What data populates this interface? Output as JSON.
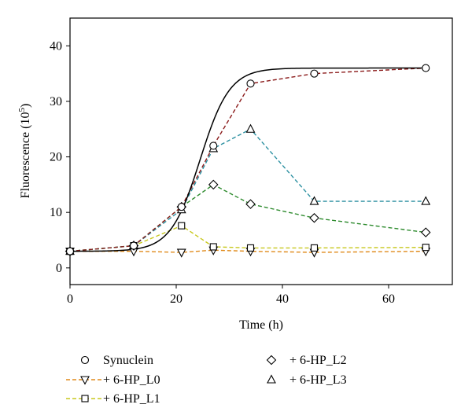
{
  "chart_data": {
    "type": "line",
    "title": "",
    "xlabel": "Time (h)",
    "ylabel_main": "Fluorescence (10",
    "ylabel_sup": "5",
    "ylabel_close": ")",
    "xlim": [
      0,
      72
    ],
    "ylim": [
      -3,
      45
    ],
    "x_ticks": [
      0,
      20,
      40,
      60
    ],
    "y_ticks": [
      0,
      10,
      20,
      30,
      40
    ],
    "grid": false,
    "legend_position": "below",
    "fit_curve": {
      "series": "Synuclein",
      "color": "#000000",
      "min": 3.0,
      "max": 36.0,
      "midpoint": 24.5,
      "rate": 0.36
    },
    "series": [
      {
        "name": "Synuclein",
        "marker": "circle",
        "color": "#000000",
        "line_color": "#8b1a1a",
        "x": [
          0,
          12,
          21,
          27,
          34,
          46,
          67
        ],
        "y": [
          3.0,
          4.0,
          11.0,
          22.0,
          33.2,
          35.0,
          36.0
        ]
      },
      {
        "name": "+ 6-HP_L0",
        "marker": "triangle-down",
        "color": "#000000",
        "line_color": "#e08a1a",
        "x": [
          0,
          12,
          21,
          27,
          34,
          46,
          67
        ],
        "y": [
          3.0,
          3.0,
          2.8,
          3.2,
          3.0,
          2.8,
          3.0
        ]
      },
      {
        "name": "+ 6-HP_L1",
        "marker": "square",
        "color": "#000000",
        "line_color": "#c8c81e",
        "x": [
          0,
          12,
          21,
          27,
          34,
          46,
          67
        ],
        "y": [
          3.0,
          4.0,
          7.6,
          3.8,
          3.6,
          3.6,
          3.7
        ]
      },
      {
        "name": "+ 6-HP_L2",
        "marker": "diamond",
        "color": "#000000",
        "line_color": "#2e8b2e",
        "x": [
          0,
          12,
          21,
          27,
          34,
          46,
          67
        ],
        "y": [
          3.0,
          4.0,
          11.0,
          15.0,
          11.5,
          9.0,
          6.4
        ]
      },
      {
        "name": "+ 6-HP_L3",
        "marker": "triangle-up",
        "color": "#000000",
        "line_color": "#2a8fa0",
        "x": [
          0,
          12,
          21,
          27,
          34,
          46,
          67
        ],
        "y": [
          3.0,
          4.0,
          10.5,
          21.5,
          25.0,
          12.0,
          12.0
        ]
      }
    ]
  }
}
